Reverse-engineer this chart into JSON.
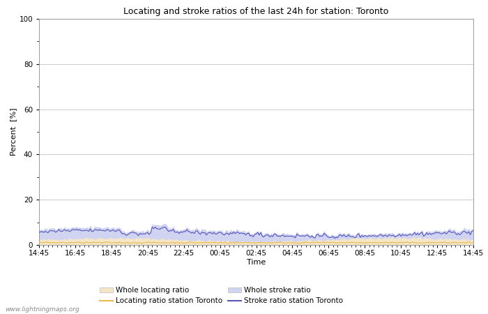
{
  "title": "Locating and stroke ratios of the last 24h for station: Toronto",
  "xlabel": "Time",
  "ylabel": "Percent  [%]",
  "ylim": [
    0,
    100
  ],
  "yticks": [
    0,
    20,
    40,
    60,
    80,
    100
  ],
  "ytick_minor": [
    10,
    30,
    50,
    70,
    90
  ],
  "x_labels": [
    "14:45",
    "16:45",
    "18:45",
    "20:45",
    "22:45",
    "00:45",
    "02:45",
    "04:45",
    "06:45",
    "08:45",
    "10:45",
    "12:45",
    "14:45"
  ],
  "background_color": "#ffffff",
  "plot_bg_color": "#ffffff",
  "grid_color": "#cccccc",
  "whole_locating_fill_color": "#f5e6c8",
  "whole_stroke_fill_color": "#d0d4f0",
  "locating_line_color": "#e8b84b",
  "stroke_line_color": "#5555bb",
  "watermark": "www.lightningmaps.org",
  "title_fontsize": 9,
  "axis_fontsize": 8,
  "tick_fontsize": 7.5,
  "legend_fontsize": 7.5
}
